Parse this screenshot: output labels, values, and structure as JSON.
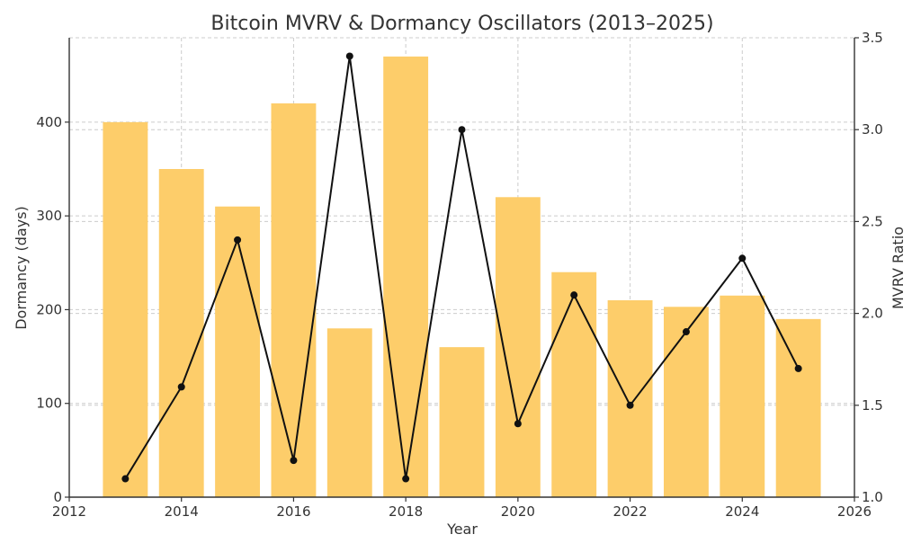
{
  "chart_data": {
    "type": "bar",
    "title": "Bitcoin MVRV & Dormancy Oscillators (2013–2025)",
    "xlabel": "Year",
    "ylabel_left": "Dormancy (days)",
    "ylabel_right": "MVRV Ratio",
    "xlim": [
      2012,
      2026
    ],
    "ylim_left": [
      0,
      490
    ],
    "ylim_right": [
      1.0,
      3.5
    ],
    "grid": true,
    "x_ticks": [
      "2012",
      "2014",
      "2016",
      "2018",
      "2020",
      "2022",
      "2024",
      "2026"
    ],
    "y_left_ticks": [
      "0",
      "100",
      "200",
      "300",
      "400"
    ],
    "y_right_ticks": [
      "1.0",
      "1.5",
      "2.0",
      "2.5",
      "3.0",
      "3.5"
    ],
    "x": [
      2013,
      2014,
      2015,
      2016,
      2017,
      2018,
      2019,
      2020,
      2021,
      2022,
      2023,
      2024,
      2025
    ],
    "series": [
      {
        "axis": "left",
        "kind": "bar",
        "color": "#fdcd6a",
        "values": [
          400,
          350,
          310,
          420,
          180,
          470,
          160,
          320,
          240,
          210,
          203,
          215,
          190
        ]
      },
      {
        "axis": "right",
        "kind": "line",
        "color": "#111111",
        "values": [
          1.1,
          1.6,
          2.4,
          1.2,
          3.4,
          1.1,
          3.0,
          1.4,
          2.1,
          1.5,
          1.9,
          2.3,
          1.7
        ]
      }
    ]
  }
}
